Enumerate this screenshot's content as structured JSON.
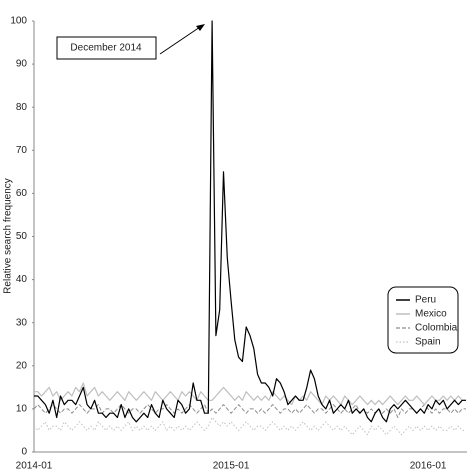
{
  "chart_data": {
    "type": "line",
    "y_label": "Relative search frequency",
    "annotation": "December 2014",
    "ylim": [
      0,
      100
    ],
    "yticks": [
      0,
      10,
      20,
      30,
      40,
      50,
      60,
      70,
      80,
      90,
      100
    ],
    "legend": "bottom-right",
    "categories": [
      "2014-01",
      null,
      null,
      null,
      null,
      null,
      null,
      null,
      null,
      null,
      null,
      null,
      null,
      null,
      null,
      null,
      null,
      null,
      null,
      null,
      null,
      null,
      null,
      null,
      null,
      null,
      null,
      null,
      null,
      null,
      null,
      null,
      null,
      null,
      null,
      null,
      null,
      null,
      null,
      null,
      null,
      null,
      null,
      null,
      null,
      null,
      null,
      null,
      null,
      null,
      null,
      null,
      "2015-01",
      null,
      null,
      null,
      null,
      null,
      null,
      null,
      null,
      null,
      null,
      null,
      null,
      null,
      null,
      null,
      null,
      null,
      null,
      null,
      null,
      null,
      null,
      null,
      null,
      null,
      null,
      null,
      null,
      null,
      null,
      null,
      null,
      null,
      null,
      null,
      null,
      null,
      null,
      null,
      null,
      null,
      null,
      null,
      null,
      null,
      null,
      null,
      null,
      null,
      null,
      null,
      "2016-01",
      null,
      null,
      null,
      null,
      null,
      null,
      null,
      null,
      null,
      null
    ],
    "series": [
      {
        "name": "Peru",
        "color": "#000000",
        "style": "solid",
        "values": [
          13,
          13,
          12,
          11,
          9,
          12,
          8,
          13,
          11,
          12,
          12,
          11,
          13,
          15,
          11,
          10,
          12,
          9,
          9,
          8,
          9,
          9,
          8,
          11,
          8,
          10,
          8,
          7,
          8,
          9,
          8,
          11,
          9,
          8,
          12,
          10,
          9,
          8,
          12,
          11,
          9,
          10,
          16,
          12,
          12,
          9,
          9,
          100,
          27,
          33,
          65,
          45,
          35,
          26,
          22,
          21,
          29,
          27,
          24,
          18,
          16,
          16,
          15,
          13,
          17,
          16,
          14,
          11,
          12,
          13,
          12,
          12,
          15,
          19,
          17,
          13,
          11,
          10,
          12,
          9,
          10,
          11,
          10,
          12,
          9,
          10,
          9,
          10,
          8,
          7,
          9,
          10,
          8,
          7,
          10,
          11,
          10,
          11,
          12,
          11,
          10,
          9,
          10,
          9,
          11,
          10,
          12,
          11,
          12,
          10,
          11,
          12,
          11,
          12,
          12
        ]
      },
      {
        "name": "Mexico",
        "color": "#bfbfbf",
        "style": "solid",
        "values": [
          14,
          14,
          13,
          14,
          15,
          13,
          14,
          12,
          13,
          14,
          13,
          15,
          14,
          16,
          13,
          14,
          15,
          13,
          14,
          13,
          12,
          13,
          14,
          13,
          12,
          14,
          13,
          12,
          13,
          14,
          13,
          12,
          14,
          13,
          12,
          13,
          14,
          13,
          12,
          14,
          13,
          14,
          13,
          12,
          14,
          13,
          12,
          12,
          13,
          14,
          15,
          14,
          13,
          12,
          13,
          12,
          14,
          13,
          12,
          13,
          12,
          13,
          12,
          14,
          13,
          12,
          13,
          12,
          11,
          13,
          12,
          13,
          12,
          14,
          13,
          12,
          11,
          13,
          12,
          13,
          12,
          11,
          13,
          12,
          11,
          12,
          13,
          12,
          11,
          12,
          11,
          12,
          11,
          12,
          13,
          12,
          11,
          12,
          13,
          12,
          12,
          13,
          12,
          11,
          12,
          13,
          12,
          12,
          13,
          12,
          13,
          12,
          13,
          12,
          12
        ]
      },
      {
        "name": "Colombia",
        "color": "#8c8c8c",
        "style": "dashed",
        "values": [
          10,
          11,
          10,
          9,
          10,
          11,
          10,
          9,
          10,
          10,
          9,
          10,
          11,
          10,
          9,
          10,
          10,
          11,
          9,
          10,
          10,
          9,
          10,
          11,
          10,
          9,
          10,
          10,
          9,
          10,
          11,
          10,
          9,
          10,
          10,
          11,
          10,
          9,
          10,
          9,
          10,
          11,
          10,
          9,
          10,
          11,
          9,
          10,
          9,
          10,
          11,
          10,
          9,
          10,
          11,
          10,
          9,
          10,
          10,
          9,
          10,
          9,
          10,
          11,
          10,
          9,
          10,
          10,
          9,
          10,
          9,
          10,
          11,
          10,
          9,
          10,
          10,
          9,
          10,
          11,
          10,
          9,
          10,
          9,
          10,
          11,
          9,
          10,
          9,
          10,
          9,
          10,
          9,
          10,
          9,
          10,
          8,
          10,
          9,
          10,
          10,
          9,
          10,
          11,
          10,
          9,
          10,
          9,
          10,
          10,
          9,
          10,
          9,
          10,
          10
        ]
      },
      {
        "name": "Spain",
        "color": "#bfbfbf",
        "style": "dotted",
        "values": [
          6,
          5,
          6,
          7,
          5,
          6,
          6,
          5,
          7,
          6,
          5,
          6,
          7,
          6,
          5,
          6,
          5,
          7,
          6,
          5,
          6,
          5,
          6,
          5,
          6,
          7,
          5,
          6,
          5,
          6,
          5,
          6,
          5,
          6,
          7,
          5,
          6,
          5,
          6,
          5,
          6,
          5,
          6,
          7,
          6,
          5,
          6,
          8,
          7,
          6,
          7,
          6,
          7,
          6,
          5,
          6,
          7,
          6,
          5,
          6,
          6,
          5,
          6,
          7,
          6,
          5,
          6,
          5,
          6,
          5,
          6,
          7,
          6,
          5,
          6,
          5,
          6,
          7,
          6,
          5,
          6,
          5,
          6,
          5,
          4,
          5,
          6,
          5,
          4,
          6,
          5,
          6,
          5,
          4,
          5,
          6,
          5,
          4,
          5,
          6,
          5,
          6,
          5,
          6,
          5,
          6,
          5,
          6,
          5,
          5,
          6,
          5,
          6,
          5,
          5
        ]
      }
    ]
  }
}
